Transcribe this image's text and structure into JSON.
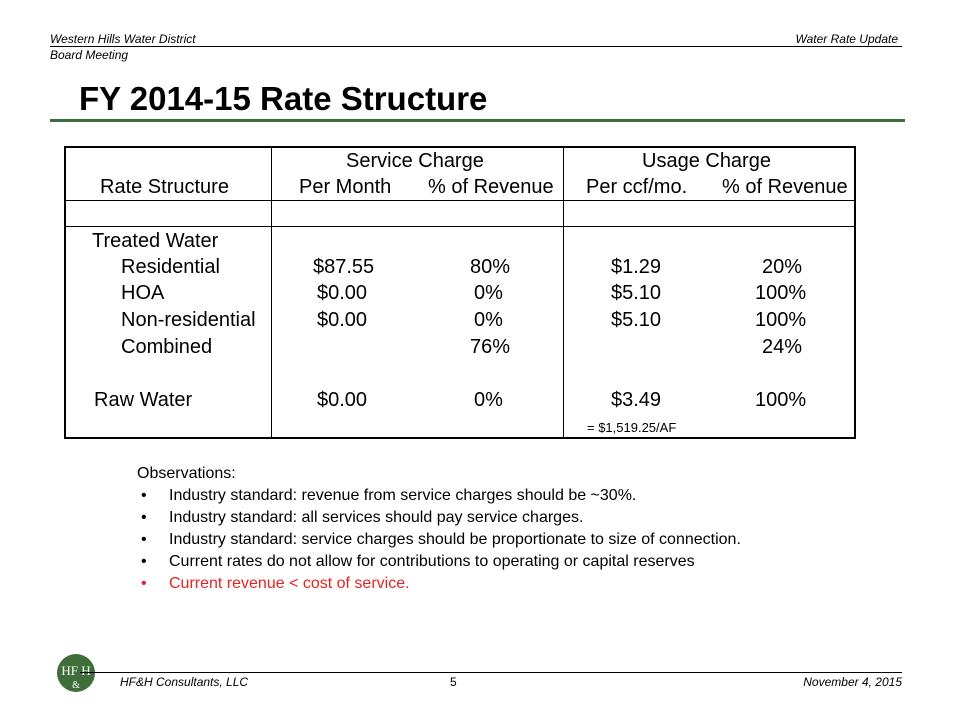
{
  "header": {
    "left": "Western Hills Water District",
    "left_sub": "Board Meeting",
    "right": "Water Rate Update"
  },
  "title": "FY 2014-15 Rate Structure",
  "table": {
    "group_service": "Service Charge",
    "group_usage": "Usage Charge",
    "col_rate_structure": "Rate Structure",
    "col_per_month": "Per Month",
    "col_service_pct": "% of Revenue",
    "col_per_ccf": "Per ccf/mo.",
    "col_usage_pct": "% of Revenue",
    "rows": [
      {
        "label": "Treated Water",
        "service": "",
        "service_pct": "",
        "usage": "",
        "usage_pct": ""
      },
      {
        "label": "Residential",
        "service": "$87.55",
        "service_pct": "80%",
        "usage": "$1.29",
        "usage_pct": "20%"
      },
      {
        "label": "HOA",
        "service": "$0.00",
        "service_pct": "0%",
        "usage": "$5.10",
        "usage_pct": "100%"
      },
      {
        "label": "Non-residential",
        "service": "$0.00",
        "service_pct": "0%",
        "usage": "$5.10",
        "usage_pct": "100%"
      },
      {
        "label": "Combined",
        "service": "",
        "service_pct": "76%",
        "usage": "",
        "usage_pct": "24%"
      },
      {
        "label": "Raw Water",
        "service": "$0.00",
        "service_pct": "0%",
        "usage": "$3.49",
        "usage_pct": "100%"
      }
    ],
    "note": "= $1,519.25/AF"
  },
  "observations": {
    "heading": "Observations:",
    "items": [
      "Industry standard: revenue from service charges should be ~30%.",
      "Industry standard: all services should pay service charges.",
      "Industry standard: service charges should be proportionate to size of connection.",
      "Current rates do not allow for contributions to operating or capital reserves",
      "Current revenue < cost of service."
    ],
    "highlight_color": "#e8231f"
  },
  "footer": {
    "left": "HF&H Consultants, LLC",
    "page": "5",
    "right": "November 4, 2015",
    "logo_text": "HF H",
    "logo_amp": "&"
  }
}
